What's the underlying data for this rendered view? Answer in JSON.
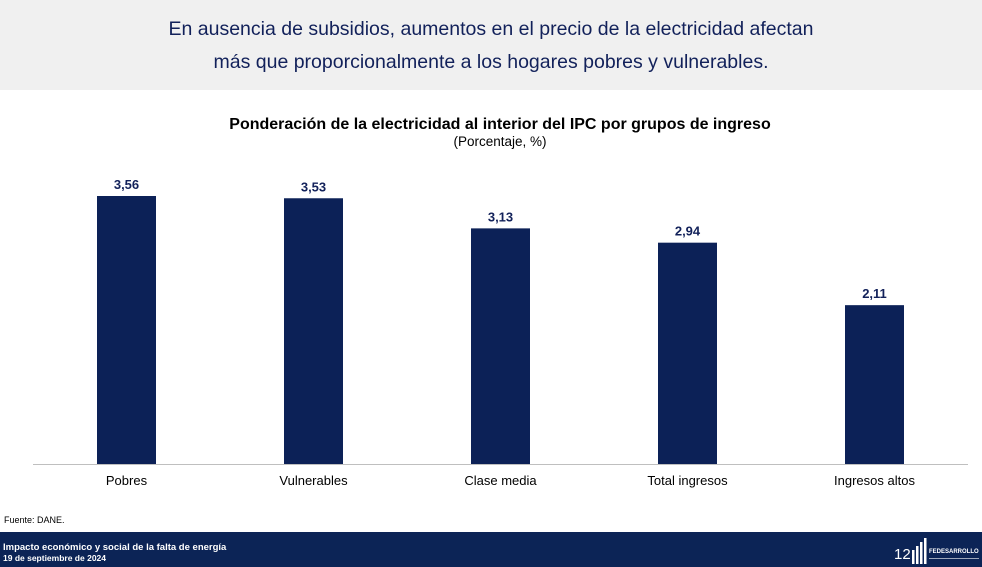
{
  "header": {
    "line1": "En ausencia de subsidios, aumentos en el precio de la electricidad afectan",
    "line2": "más que proporcionalmente a los hogares pobres y vulnerables."
  },
  "chart_data": {
    "type": "bar",
    "title": "Ponderación de la electricidad al interior del IPC por grupos de ingreso",
    "subtitle": "(Porcentaje, %)",
    "categories": [
      "Pobres",
      "Vulnerables",
      "Clase media",
      "Total ingresos",
      "Ingresos altos"
    ],
    "values": [
      3.56,
      3.53,
      3.13,
      2.94,
      2.11
    ],
    "value_labels": [
      "3,56",
      "3,53",
      "3,13",
      "2,94",
      "2,11"
    ],
    "ylim": [
      0,
      3.56
    ],
    "grid": false,
    "bar_color": "#0c2157"
  },
  "source": "Fuente: DANE.",
  "footer": {
    "line1": "Impacto económico y social de la falta de energía",
    "line2": "19 de septiembre de 2024",
    "page": "12",
    "logo_text": "FEDESARROLLO",
    "color": "#0c2456"
  }
}
